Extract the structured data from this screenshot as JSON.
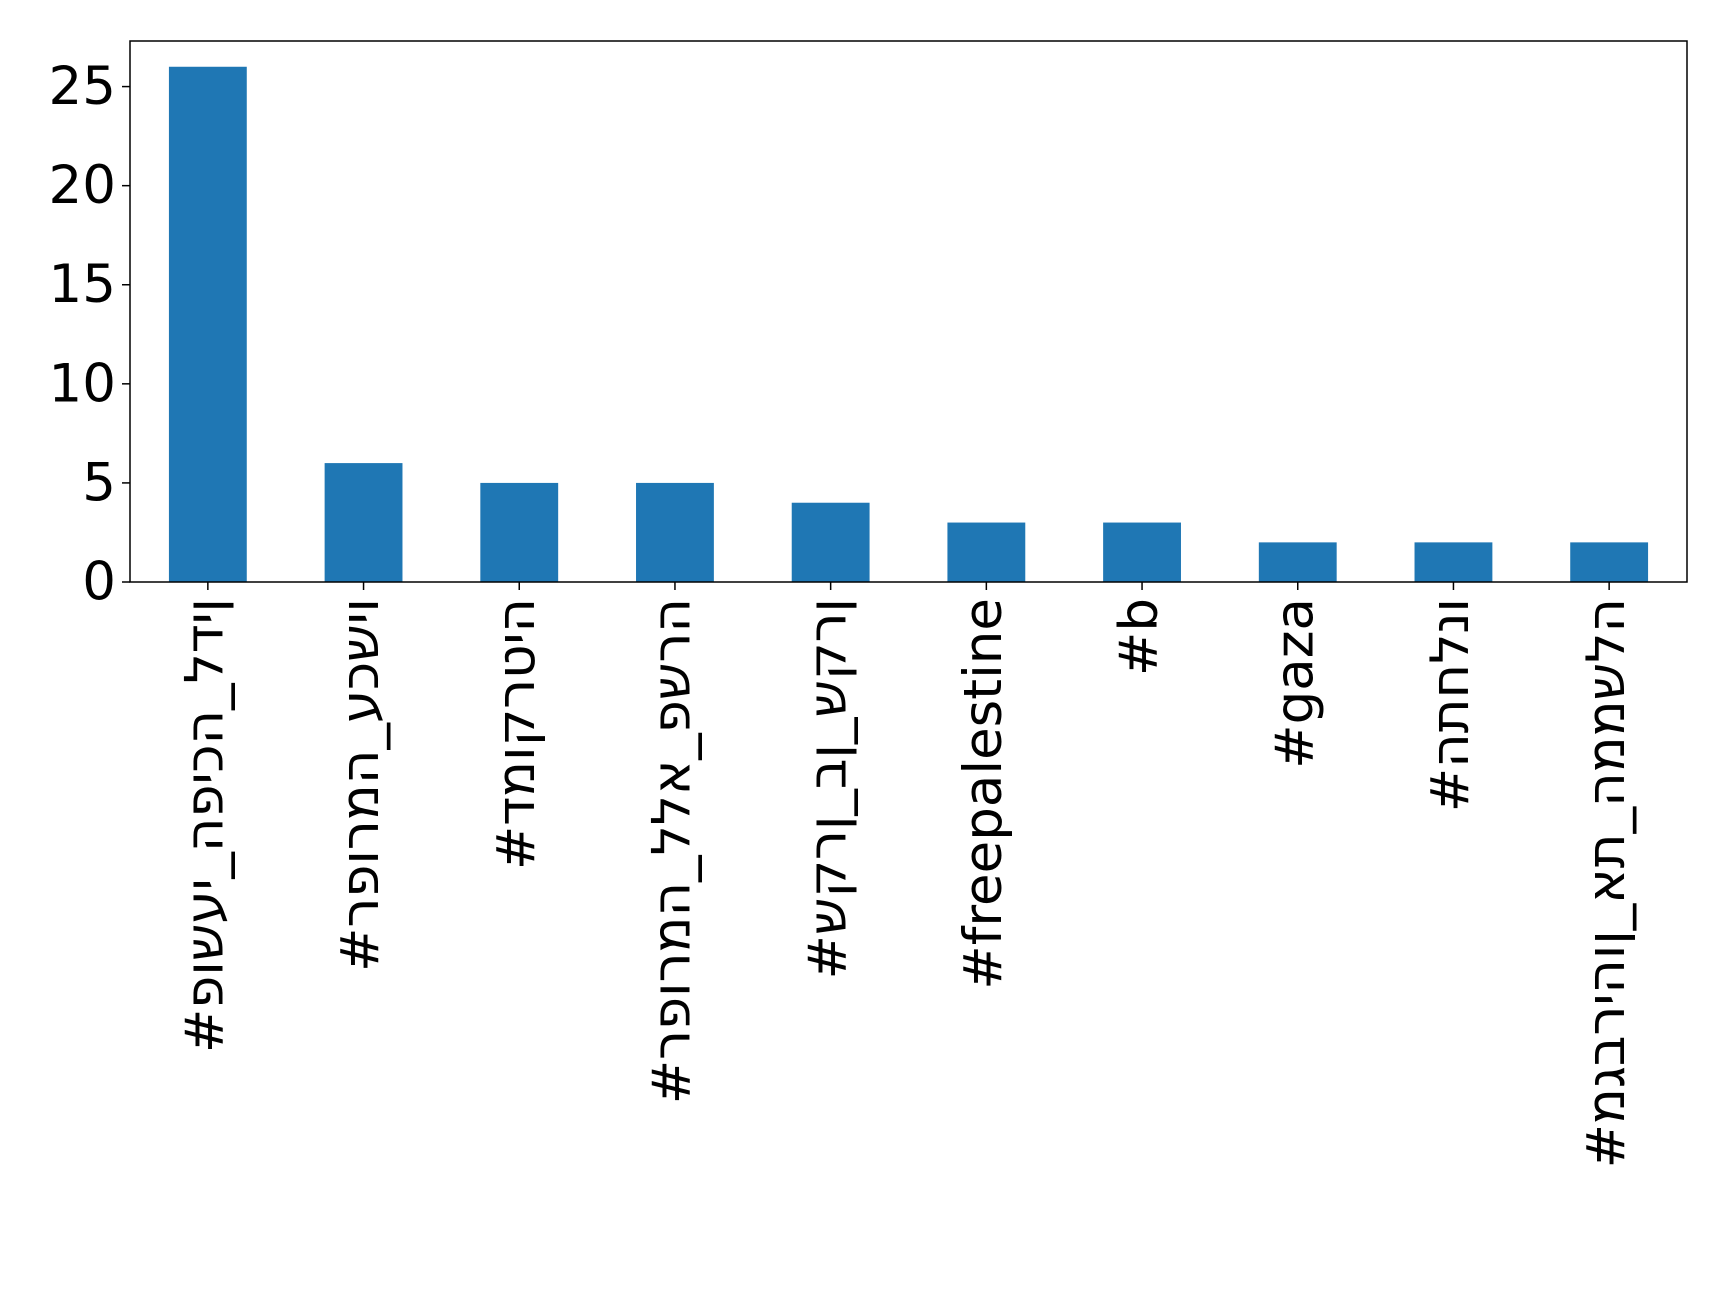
{
  "chart_data": {
    "type": "bar",
    "categories": [
      "#פושעי_הפיכה_לדין",
      "#רפורמה_עכשיו",
      "#דמוקרטיה",
      "#רפורמה_ללא_פשרה",
      "#שקרן_בן_שקרן",
      "#freepalestine",
      "#b",
      "#gaza",
      "#התחלנו",
      "#מגבריהון_את_הממשלה"
    ],
    "values": [
      26,
      6,
      5,
      5,
      4,
      3,
      3,
      2,
      2,
      2
    ],
    "color": "#1f77b4",
    "ylim": [
      0,
      27.3
    ],
    "yticks": [
      0,
      5,
      10,
      15,
      20,
      25
    ],
    "grid": false
  }
}
